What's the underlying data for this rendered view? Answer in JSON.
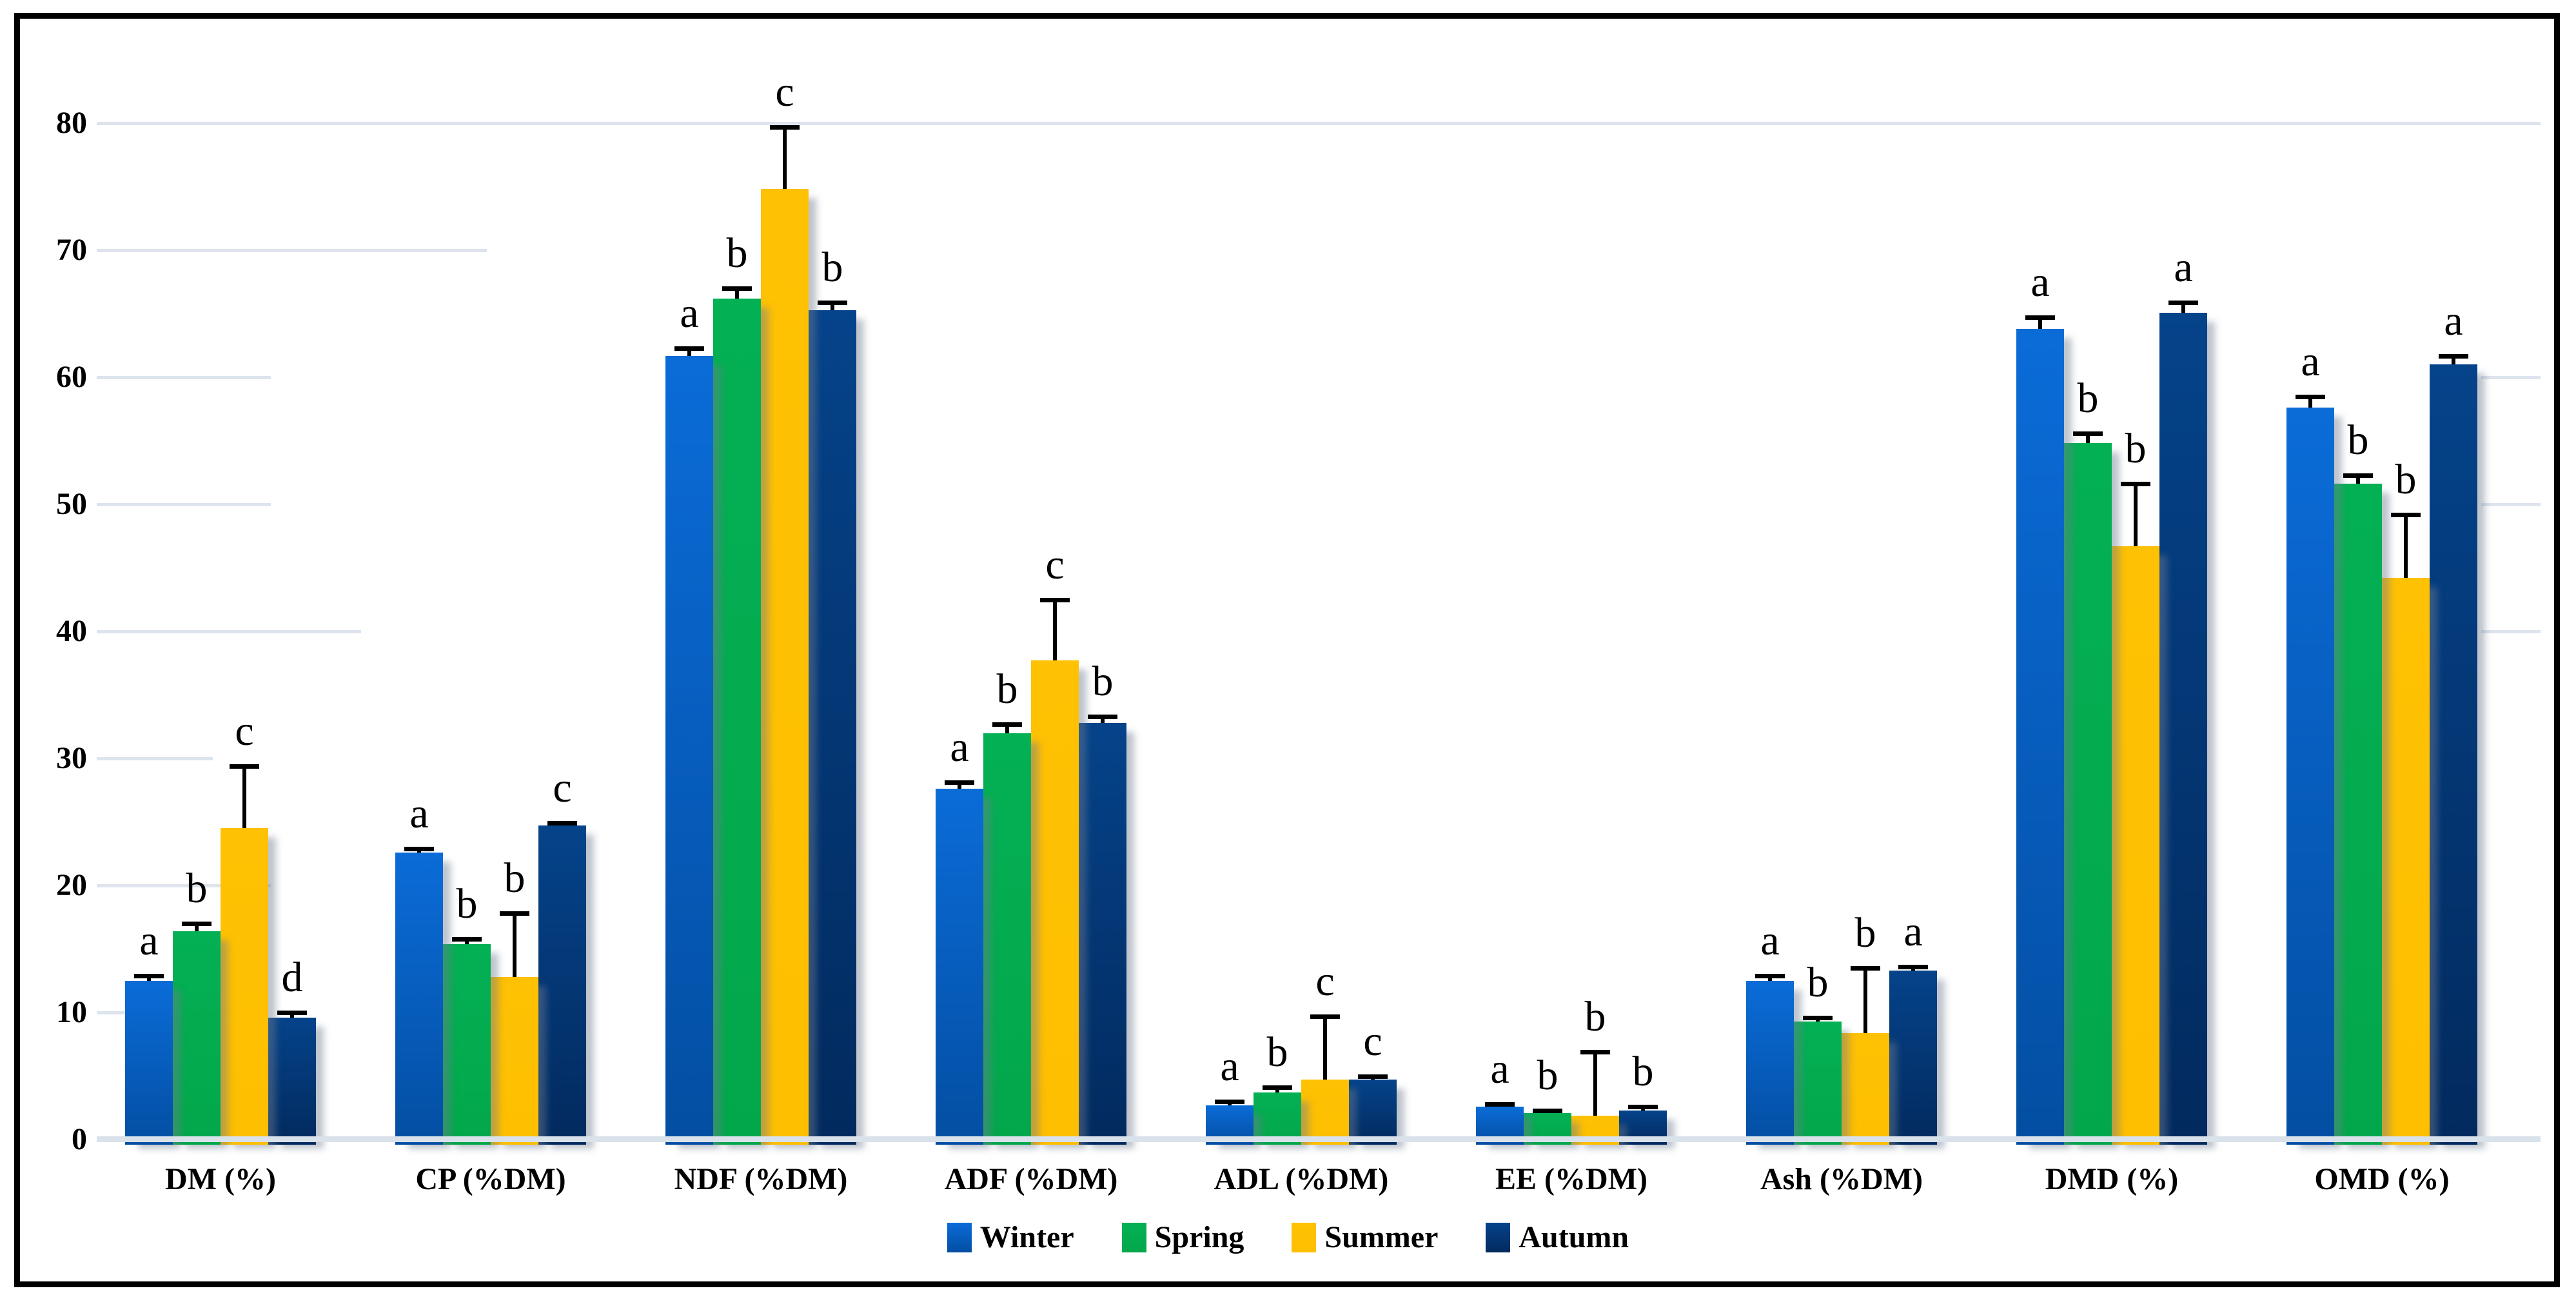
{
  "figure": {
    "background": "#ffffff",
    "frame_border_color": "#000000"
  },
  "chart_data": {
    "type": "bar",
    "title": "",
    "xlabel": "",
    "ylabel": "",
    "categories": [
      "DM (%)",
      "CP (%DM)",
      "NDF (%DM)",
      "ADF (%DM)",
      "ADL (%DM)",
      "EE (%DM)",
      "Ash (%DM)",
      "DMD (%)",
      "OMD (%)"
    ],
    "series": [
      {
        "name": "Winter",
        "color_top": "#0b6cd8",
        "color_bottom": "#034ea2",
        "values": [
          12.5,
          22.6,
          61.7,
          27.6,
          2.7,
          2.6,
          12.5,
          63.8,
          57.6
        ],
        "errors": [
          0.4,
          0.3,
          0.6,
          0.5,
          0.3,
          0.2,
          0.4,
          0.9,
          0.9
        ],
        "letters": [
          "a",
          "a",
          "a",
          "a",
          "a",
          "a",
          "a",
          "a",
          "a"
        ]
      },
      {
        "name": "Spring",
        "color_top": "#04b054",
        "color_bottom": "#03a74b",
        "values": [
          16.4,
          15.4,
          66.2,
          32.0,
          3.7,
          2.1,
          9.3,
          54.8,
          51.6
        ],
        "errors": [
          0.6,
          0.4,
          0.8,
          0.7,
          0.4,
          0.2,
          0.3,
          0.8,
          0.7
        ],
        "letters": [
          "b",
          "b",
          "b",
          "b",
          "b",
          "b",
          "b",
          "b",
          "b"
        ]
      },
      {
        "name": "Summer",
        "color_top": "#ffc103",
        "color_bottom": "#fdbf00",
        "values": [
          24.5,
          12.8,
          74.8,
          37.7,
          4.7,
          1.9,
          8.4,
          46.7,
          44.2
        ],
        "errors": [
          4.9,
          5.0,
          4.9,
          4.8,
          5.0,
          5.0,
          5.1,
          4.9,
          5.0
        ],
        "letters": [
          "c",
          "b",
          "c",
          "c",
          "c",
          "b",
          "b",
          "b",
          "b"
        ]
      },
      {
        "name": "Autumn",
        "color_top": "#05438a",
        "color_bottom": "#022a5e",
        "values": [
          9.6,
          24.7,
          65.3,
          32.8,
          4.7,
          2.3,
          13.3,
          65.1,
          61.0
        ],
        "errors": [
          0.4,
          0.2,
          0.6,
          0.5,
          0.3,
          0.3,
          0.3,
          0.8,
          0.7
        ],
        "letters": [
          "d",
          "c",
          "b",
          "b",
          "c",
          "b",
          "a",
          "a",
          "a"
        ]
      }
    ],
    "ylim": [
      0,
      80
    ],
    "yticks": [
      0,
      10,
      20,
      30,
      40,
      50,
      60,
      70,
      80
    ],
    "grid": true,
    "grid_color": "#dde4ed",
    "baseline_color": "#d9e1ea",
    "error_bar_color": "#000000",
    "letter_color": "#000000",
    "legend": {
      "position": "bottom",
      "labels": [
        "Winter",
        "Spring",
        "Summer",
        "Autumn"
      ]
    }
  }
}
